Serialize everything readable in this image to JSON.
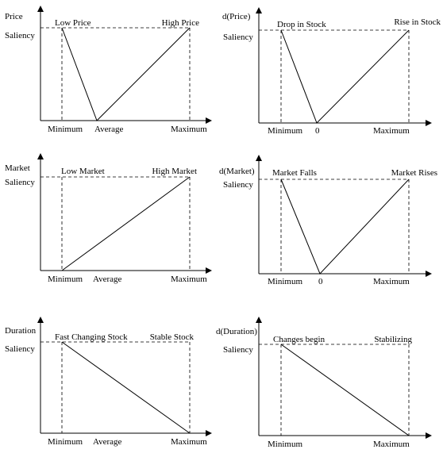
{
  "panels": [
    {
      "id": "price",
      "ylabel_top": "Price",
      "ylabel": "Saliency",
      "left_label": "Low Price",
      "right_label": "High Price",
      "x_min": "Minimum",
      "x_mid": "Average",
      "x_max": "Maximum",
      "shape": "v"
    },
    {
      "id": "dprice",
      "ylabel_top": "d(Price)",
      "ylabel": "Saliency",
      "left_label": "Drop in Stock",
      "right_label": "Rise in Stock",
      "x_min": "Minimum",
      "x_mid": "0",
      "x_max": "Maximum",
      "shape": "v"
    },
    {
      "id": "market",
      "ylabel_top": "Market",
      "ylabel": "Saliency",
      "left_label": "Low Market",
      "right_label": "High Market",
      "x_min": "Minimum",
      "x_mid": "Average",
      "x_max": "Maximum",
      "shape": "rise"
    },
    {
      "id": "dmarket",
      "ylabel_top": "d(Market)",
      "ylabel": "Saliency",
      "left_label": "Market Falls",
      "right_label": "Market Rises",
      "x_min": "Minimum",
      "x_mid": "0",
      "x_max": "Maximum",
      "shape": "v"
    },
    {
      "id": "duration",
      "ylabel_top": "Duration",
      "ylabel": "Saliency",
      "left_label": "Fast Changing Stock",
      "right_label": "Stable Stock",
      "x_min": "Minimum",
      "x_mid": "Average",
      "x_max": "Maximum",
      "shape": "fall"
    },
    {
      "id": "dduration",
      "ylabel_top": "d(Duration)",
      "ylabel": "Saliency",
      "left_label": "Changes begin",
      "right_label": "Stabilizing",
      "x_min": "Minimum",
      "x_mid": "",
      "x_max": "Maximum",
      "shape": "fall"
    }
  ]
}
